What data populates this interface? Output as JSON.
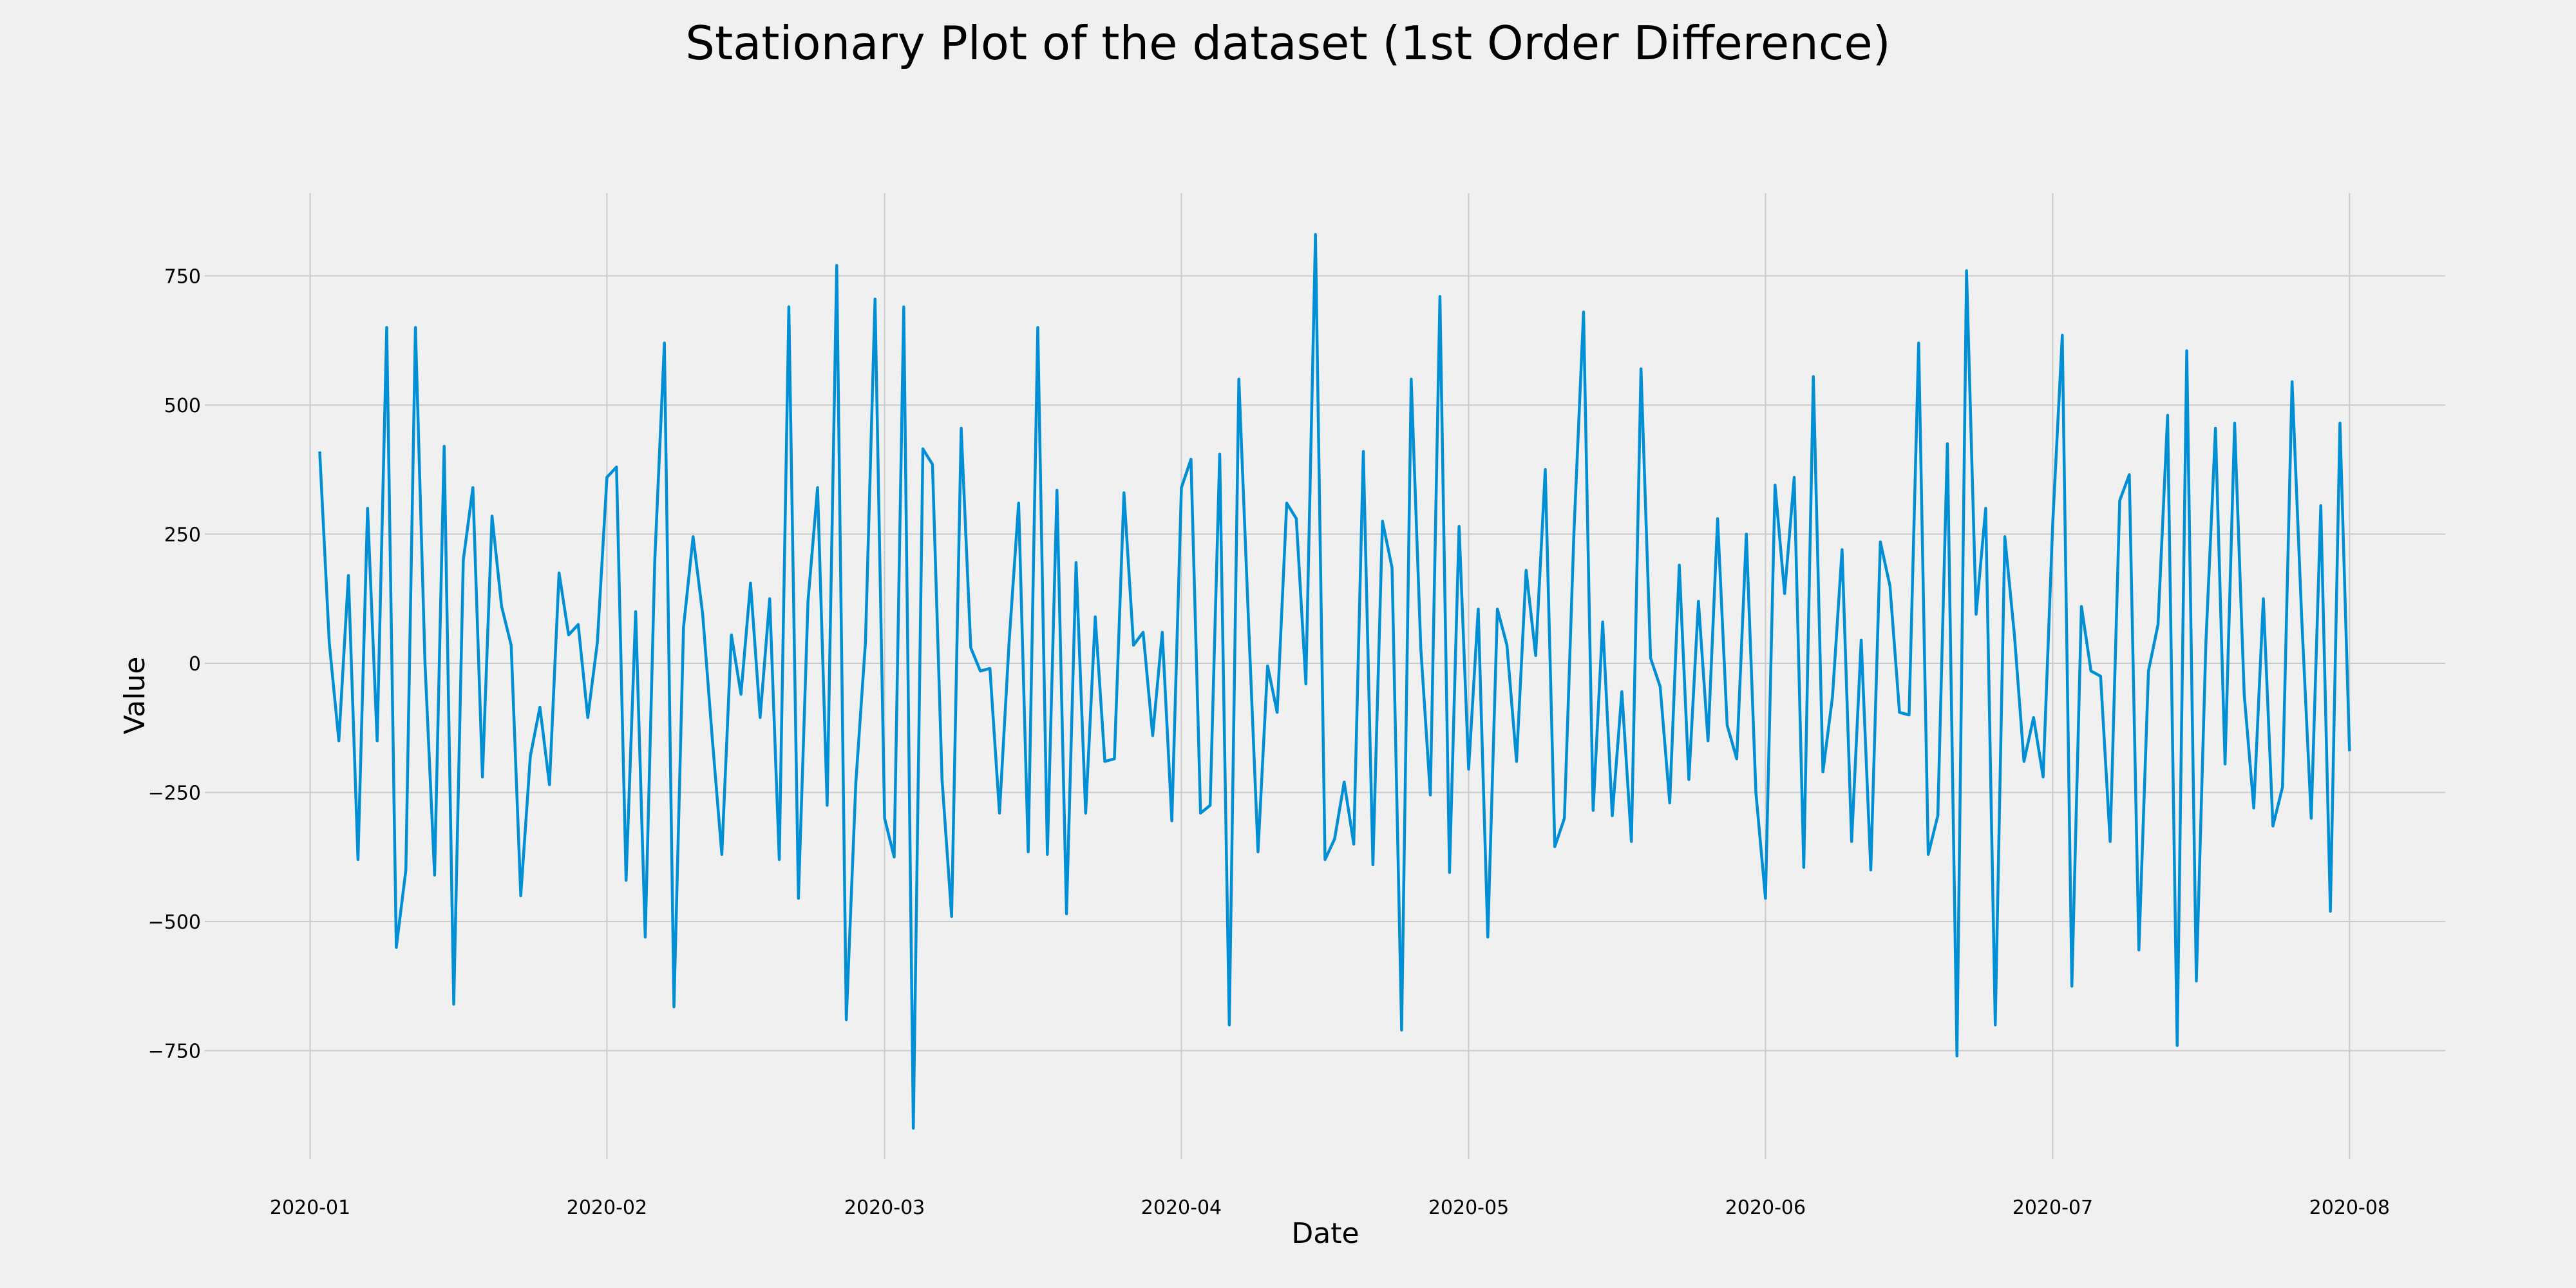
{
  "chart_data": {
    "type": "line",
    "title": "Stationary Plot of the dataset (1st Order Difference)",
    "xlabel": "Date",
    "ylabel": "Value",
    "x_start": "2020-01-02",
    "x_end": "2020-08-01",
    "xlim": [
      "2019-12-21",
      "2020-08-11"
    ],
    "ylim": [
      -960,
      910
    ],
    "x_ticks": [
      "2020-01",
      "2020-02",
      "2020-03",
      "2020-04",
      "2020-05",
      "2020-06",
      "2020-07",
      "2020-08"
    ],
    "y_ticks": [
      -750,
      -500,
      -250,
      0,
      250,
      500,
      750
    ],
    "y_tick_labels": [
      "−750",
      "−500",
      "−250",
      "0",
      "250",
      "500",
      "750"
    ],
    "grid": true,
    "colors": {
      "background": "#f0f0f0",
      "grid": "#cbcbcb",
      "line": "#008fd5"
    },
    "series": [
      {
        "values": [
          410,
          40,
          -150,
          170,
          -380,
          300,
          -150,
          650,
          -550,
          -400,
          650,
          0,
          -410,
          420,
          -660,
          200,
          340,
          -220,
          285,
          110,
          35,
          -450,
          -180,
          -85,
          -235,
          175,
          55,
          75,
          -105,
          40,
          360,
          380,
          -420,
          100,
          -530,
          200,
          620,
          -665,
          70,
          245,
          95,
          -145,
          -370,
          55,
          -60,
          155,
          -105,
          125,
          -380,
          690,
          -455,
          120,
          340,
          -275,
          770,
          -690,
          -230,
          40,
          705,
          -300,
          -375,
          690,
          -900,
          415,
          385,
          -225,
          -490,
          455,
          30,
          -15,
          -10,
          -290,
          40,
          310,
          -365,
          650,
          -370,
          335,
          -485,
          195,
          -290,
          90,
          -190,
          -185,
          330,
          35,
          60,
          -140,
          60,
          -305,
          340,
          395,
          -290,
          -275,
          405,
          -700,
          550,
          85,
          -365,
          -5,
          -95,
          310,
          280,
          -40,
          830,
          -380,
          -340,
          -230,
          -350,
          410,
          -390,
          275,
          185,
          -710,
          550,
          30,
          -255,
          710,
          -405,
          265,
          -205,
          105,
          -530,
          105,
          35,
          -190,
          180,
          15,
          375,
          -355,
          -300,
          255,
          680,
          -285,
          80,
          -295,
          -55,
          -345,
          570,
          10,
          -45,
          -270,
          190,
          -225,
          120,
          -150,
          280,
          -120,
          -185,
          250,
          -250,
          -455,
          345,
          135,
          360,
          -395,
          555,
          -210,
          -65,
          220,
          -345,
          45,
          -400,
          235,
          150,
          -95,
          -100,
          620,
          -370,
          -295,
          425,
          -760,
          760,
          95,
          300,
          -700,
          245,
          55,
          -190,
          -105,
          -220,
          270,
          635,
          -625,
          110,
          -15,
          -25,
          -345,
          315,
          365,
          -555,
          -15,
          75,
          480,
          -740,
          605,
          -615,
          40,
          455,
          -195,
          465,
          -60,
          -280,
          125,
          -315,
          -240,
          545,
          90,
          -300,
          305,
          -480,
          465,
          -170
        ]
      }
    ]
  }
}
